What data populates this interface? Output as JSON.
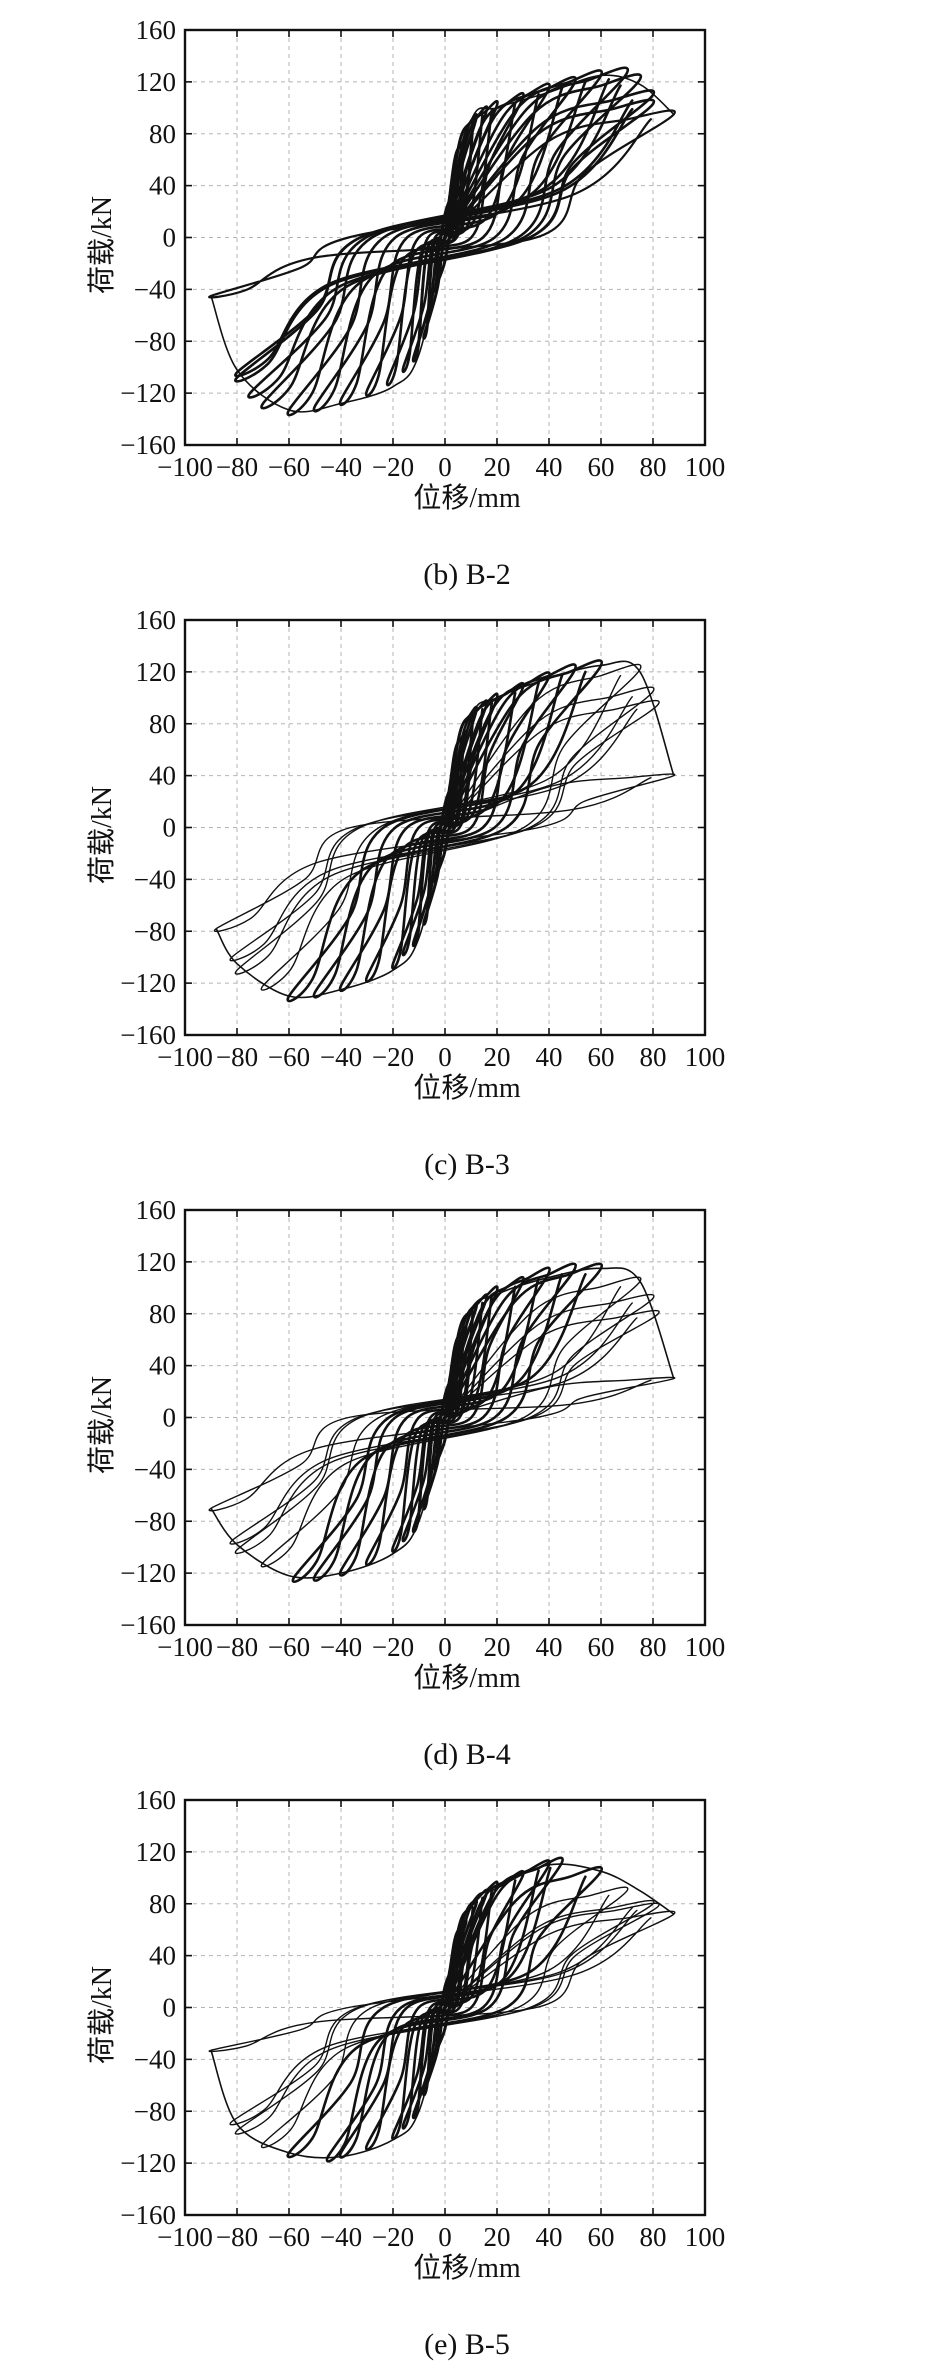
{
  "chart_data": [
    {
      "type": "line",
      "subtype": "hysteresis",
      "caption": "(b) B-2",
      "xlabel": "位移/mm",
      "ylabel": "荷载/kN",
      "xlim": [
        -100,
        100
      ],
      "ylim": [
        -160,
        160
      ],
      "xticks": [
        "−100",
        "−80",
        "−60",
        "−40",
        "−20",
        "0",
        "20",
        "40",
        "60",
        "80",
        "100"
      ],
      "yticks": [
        "160",
        "120",
        "80",
        "40",
        "0",
        "−40",
        "−80",
        "−120",
        "−160"
      ],
      "grid": true,
      "envelope": {
        "x": [
          -90,
          -80,
          -60,
          -40,
          -20,
          -10,
          0,
          10,
          20,
          40,
          60,
          75,
          88
        ],
        "y": [
          -45,
          -102,
          -133,
          -128,
          -115,
          -90,
          0,
          90,
          100,
          112,
          125,
          118,
          95
        ]
      },
      "cycles": [
        {
          "dmax": 4,
          "pmax": 40,
          "dmin": -4,
          "pmin": -40,
          "width": 3.0
        },
        {
          "dmax": 8,
          "pmax": 75,
          "dmin": -8,
          "pmin": -75,
          "width": 3.0
        },
        {
          "dmax": 12,
          "pmax": 92,
          "dmin": -12,
          "pmin": -92,
          "width": 3.0
        },
        {
          "dmax": 16,
          "pmax": 98,
          "dmin": -16,
          "pmin": -100,
          "width": 2.6
        },
        {
          "dmax": 20,
          "pmax": 102,
          "dmin": -22,
          "pmin": -110,
          "width": 2.6
        },
        {
          "dmax": 30,
          "pmax": 108,
          "dmin": -30,
          "pmin": -118,
          "width": 2.6
        },
        {
          "dmax": 40,
          "pmax": 115,
          "dmin": -40,
          "pmin": -125,
          "width": 2.6
        },
        {
          "dmax": 50,
          "pmax": 120,
          "dmin": -50,
          "pmin": -130,
          "width": 2.6
        },
        {
          "dmax": 60,
          "pmax": 125,
          "dmin": -60,
          "pmin": -133,
          "width": 2.6
        },
        {
          "dmax": 70,
          "pmax": 127,
          "dmin": -70,
          "pmin": -128,
          "width": 2.6
        },
        {
          "dmax": 75,
          "pmax": 122,
          "dmin": -75,
          "pmin": -120,
          "width": 2.6
        },
        {
          "dmax": 80,
          "pmax": 110,
          "dmin": -80,
          "pmin": -108,
          "width": 2.6
        },
        {
          "dmax": 80,
          "pmax": 103,
          "dmin": -80,
          "pmin": -104,
          "width": 2.6
        },
        {
          "dmax": 88,
          "pmax": 95,
          "dmin": -90,
          "pmin": -45,
          "width": 2.2
        }
      ]
    },
    {
      "type": "line",
      "subtype": "hysteresis",
      "caption": "(c) B-3",
      "xlabel": "位移/mm",
      "ylabel": "荷载/kN",
      "xlim": [
        -100,
        100
      ],
      "ylim": [
        -160,
        160
      ],
      "xticks": [
        "−100",
        "−80",
        "−60",
        "−40",
        "−20",
        "0",
        "20",
        "40",
        "60",
        "80",
        "100"
      ],
      "yticks": [
        "160",
        "120",
        "80",
        "40",
        "0",
        "−40",
        "−80",
        "−120",
        "−160"
      ],
      "grid": true,
      "envelope": {
        "x": [
          -88,
          -80,
          -60,
          -40,
          -20,
          -10,
          0,
          10,
          20,
          40,
          60,
          75,
          88
        ],
        "y": [
          -78,
          -105,
          -130,
          -125,
          -110,
          -85,
          0,
          85,
          100,
          115,
          125,
          120,
          40
        ]
      },
      "cycles": [
        {
          "dmax": 4,
          "pmax": 40,
          "dmin": -4,
          "pmin": -40,
          "width": 3.0
        },
        {
          "dmax": 8,
          "pmax": 72,
          "dmin": -8,
          "pmin": -72,
          "width": 3.0
        },
        {
          "dmax": 12,
          "pmax": 90,
          "dmin": -12,
          "pmin": -88,
          "width": 3.0
        },
        {
          "dmax": 16,
          "pmax": 95,
          "dmin": -16,
          "pmin": -95,
          "width": 2.6
        },
        {
          "dmax": 20,
          "pmax": 100,
          "dmin": -20,
          "pmin": -105,
          "width": 2.6
        },
        {
          "dmax": 30,
          "pmax": 108,
          "dmin": -30,
          "pmin": -115,
          "width": 2.6
        },
        {
          "dmax": 40,
          "pmax": 116,
          "dmin": -40,
          "pmin": -122,
          "width": 2.6
        },
        {
          "dmax": 50,
          "pmax": 122,
          "dmin": -50,
          "pmin": -127,
          "width": 2.6
        },
        {
          "dmax": 60,
          "pmax": 125,
          "dmin": -60,
          "pmin": -130,
          "width": 2.6
        },
        {
          "dmax": 75,
          "pmax": 122,
          "dmin": -70,
          "pmin": -122,
          "width": 1.4
        },
        {
          "dmax": 80,
          "pmax": 105,
          "dmin": -80,
          "pmin": -110,
          "width": 1.4
        },
        {
          "dmax": 82,
          "pmax": 95,
          "dmin": -82,
          "pmin": -100,
          "width": 1.4
        },
        {
          "dmax": 88,
          "pmax": 40,
          "dmin": -88,
          "pmin": -78,
          "width": 1.4
        }
      ]
    },
    {
      "type": "line",
      "subtype": "hysteresis",
      "caption": "(d) B-4",
      "xlabel": "位移/mm",
      "ylabel": "荷载/kN",
      "xlim": [
        -100,
        100
      ],
      "ylim": [
        -160,
        160
      ],
      "xticks": [
        "−100",
        "−80",
        "−60",
        "−40",
        "−20",
        "0",
        "20",
        "40",
        "60",
        "80",
        "100"
      ],
      "yticks": [
        "160",
        "120",
        "80",
        "40",
        "0",
        "−40",
        "−80",
        "−120",
        "−160"
      ],
      "grid": true,
      "envelope": {
        "x": [
          -90,
          -80,
          -60,
          -40,
          -20,
          -10,
          0,
          10,
          20,
          40,
          60,
          75,
          88
        ],
        "y": [
          -70,
          -98,
          -122,
          -120,
          -105,
          -80,
          0,
          80,
          95,
          108,
          115,
          105,
          30
        ]
      },
      "cycles": [
        {
          "dmax": 4,
          "pmax": 38,
          "dmin": -4,
          "pmin": -38,
          "width": 3.0
        },
        {
          "dmax": 8,
          "pmax": 68,
          "dmin": -8,
          "pmin": -68,
          "width": 3.0
        },
        {
          "dmax": 12,
          "pmax": 85,
          "dmin": -12,
          "pmin": -85,
          "width": 3.0
        },
        {
          "dmax": 16,
          "pmax": 92,
          "dmin": -16,
          "pmin": -92,
          "width": 2.6
        },
        {
          "dmax": 20,
          "pmax": 98,
          "dmin": -20,
          "pmin": -100,
          "width": 2.6
        },
        {
          "dmax": 30,
          "pmax": 105,
          "dmin": -30,
          "pmin": -110,
          "width": 2.6
        },
        {
          "dmax": 40,
          "pmax": 112,
          "dmin": -40,
          "pmin": -118,
          "width": 2.6
        },
        {
          "dmax": 50,
          "pmax": 115,
          "dmin": -50,
          "pmin": -122,
          "width": 2.6
        },
        {
          "dmax": 60,
          "pmax": 115,
          "dmin": -58,
          "pmin": -123,
          "width": 2.6
        },
        {
          "dmax": 75,
          "pmax": 105,
          "dmin": -70,
          "pmin": -112,
          "width": 1.4
        },
        {
          "dmax": 80,
          "pmax": 92,
          "dmin": -80,
          "pmin": -102,
          "width": 1.4
        },
        {
          "dmax": 82,
          "pmax": 80,
          "dmin": -82,
          "pmin": -95,
          "width": 1.4
        },
        {
          "dmax": 88,
          "pmax": 30,
          "dmin": -90,
          "pmin": -70,
          "width": 1.4
        }
      ]
    },
    {
      "type": "line",
      "subtype": "hysteresis",
      "caption": "(e) B-5",
      "xlabel": "位移/mm",
      "ylabel": "荷载/kN",
      "xlim": [
        -100,
        100
      ],
      "ylim": [
        -160,
        160
      ],
      "xticks": [
        "−100",
        "−80",
        "−60",
        "−40",
        "−20",
        "0",
        "20",
        "40",
        "60",
        "80",
        "100"
      ],
      "yticks": [
        "160",
        "120",
        "80",
        "40",
        "0",
        "−40",
        "−80",
        "−120",
        "−160"
      ],
      "grid": true,
      "envelope": {
        "x": [
          -90,
          -80,
          -60,
          -40,
          -20,
          -10,
          0,
          10,
          20,
          40,
          60,
          75,
          88
        ],
        "y": [
          -33,
          -90,
          -112,
          -115,
          -102,
          -80,
          0,
          78,
          92,
          110,
          105,
          90,
          72
        ]
      },
      "cycles": [
        {
          "dmax": 4,
          "pmax": 36,
          "dmin": -4,
          "pmin": -36,
          "width": 3.0
        },
        {
          "dmax": 8,
          "pmax": 65,
          "dmin": -8,
          "pmin": -65,
          "width": 3.0
        },
        {
          "dmax": 12,
          "pmax": 80,
          "dmin": -12,
          "pmin": -82,
          "width": 3.0
        },
        {
          "dmax": 16,
          "pmax": 88,
          "dmin": -16,
          "pmin": -90,
          "width": 2.6
        },
        {
          "dmax": 20,
          "pmax": 94,
          "dmin": -20,
          "pmin": -98,
          "width": 2.6
        },
        {
          "dmax": 30,
          "pmax": 102,
          "dmin": -30,
          "pmin": -106,
          "width": 2.6
        },
        {
          "dmax": 40,
          "pmax": 110,
          "dmin": -40,
          "pmin": -112,
          "width": 2.6
        },
        {
          "dmax": 45,
          "pmax": 112,
          "dmin": -45,
          "pmin": -115,
          "width": 2.6
        },
        {
          "dmax": 60,
          "pmax": 105,
          "dmin": -60,
          "pmin": -112,
          "width": 2.6
        },
        {
          "dmax": 70,
          "pmax": 90,
          "dmin": -70,
          "pmin": -105,
          "width": 1.4
        },
        {
          "dmax": 80,
          "pmax": 80,
          "dmin": -80,
          "pmin": -95,
          "width": 1.4
        },
        {
          "dmax": 82,
          "pmax": 78,
          "dmin": -82,
          "pmin": -88,
          "width": 1.4
        },
        {
          "dmax": 88,
          "pmax": 72,
          "dmin": -90,
          "pmin": -33,
          "width": 1.4
        }
      ]
    }
  ]
}
